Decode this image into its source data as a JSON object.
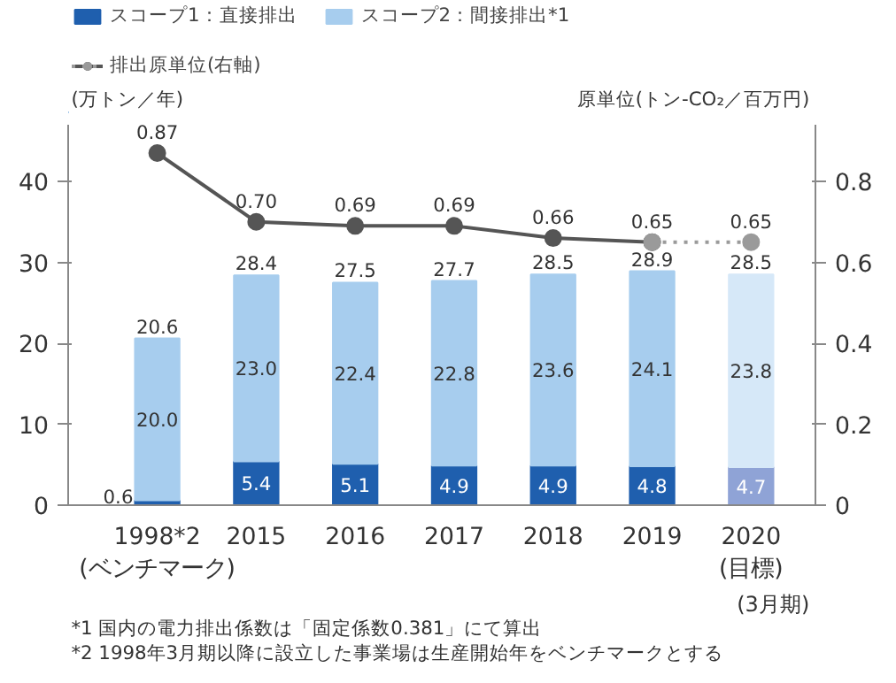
{
  "chart_data": {
    "type": "bar",
    "stacked": true,
    "categories": [
      "1998*2\n(ベンチマーク)",
      "2015",
      "2016",
      "2017",
      "2018",
      "2019",
      "2020\n(目標)"
    ],
    "series": [
      {
        "name": "スコープ1：直接排出",
        "color": "#1f5fae",
        "colors": [
          "#1f5fae",
          "#1f5fae",
          "#1f5fae",
          "#1f5fae",
          "#1f5fae",
          "#1f5fae",
          "#8fa3d6"
        ],
        "values": [
          0.6,
          5.4,
          5.1,
          4.9,
          4.9,
          4.8,
          4.7
        ],
        "value_labels": [
          "0.6",
          "5.4",
          "5.1",
          "4.9",
          "4.9",
          "4.8",
          "4.7"
        ]
      },
      {
        "name": "スコープ2：間接排出*1",
        "color": "#a7cdee",
        "colors": [
          "#a7cdee",
          "#a7cdee",
          "#a7cdee",
          "#a7cdee",
          "#a7cdee",
          "#a7cdee",
          "#d6e8f8"
        ],
        "values": [
          20.0,
          23.0,
          22.4,
          22.8,
          23.6,
          24.1,
          23.8
        ],
        "value_labels": [
          "20.0",
          "23.0",
          "22.4",
          "22.8",
          "23.6",
          "24.1",
          "23.8"
        ]
      },
      {
        "name": "排出原単位(右軸)",
        "type": "line",
        "axis": "y2",
        "color": "#555555",
        "line_style": "solid",
        "values": [
          0.87,
          0.7,
          0.69,
          0.69,
          0.66,
          0.65,
          null
        ],
        "value_labels": [
          "0.87",
          "0.70",
          "0.69",
          "0.69",
          "0.66",
          "0.65",
          null
        ]
      },
      {
        "type": "line",
        "axis": "y2",
        "color": "#9a9a9a",
        "line_style": "dotted",
        "values": [
          null,
          null,
          null,
          null,
          null,
          0.65,
          0.65
        ],
        "value_labels": [
          null,
          null,
          null,
          null,
          null,
          null,
          "0.65"
        ]
      }
    ],
    "totals": [
      "20.6",
      "28.4",
      "27.5",
      "27.7",
      "28.5",
      "28.9",
      "28.5"
    ],
    "ylim": [
      0,
      47
    ],
    "yticks": [
      0,
      10,
      20,
      30,
      40
    ],
    "y2lim": [
      0,
      0.94
    ],
    "y2ticks": [
      0,
      0.2,
      0.4,
      0.6,
      0.8
    ],
    "ylabel": "(万トン／年)",
    "y2label": "原単位(トン-CO₂／百万円)",
    "xlabel": "(3月期)",
    "marker": "circle",
    "grid": false,
    "legend": "top",
    "annotations": [
      "*1 国内の電力排出係数は「固定係数0.381」にて算出",
      "*2 1998年3月期以降に設立した事業場は生産開始年をベンチマークとする"
    ]
  }
}
